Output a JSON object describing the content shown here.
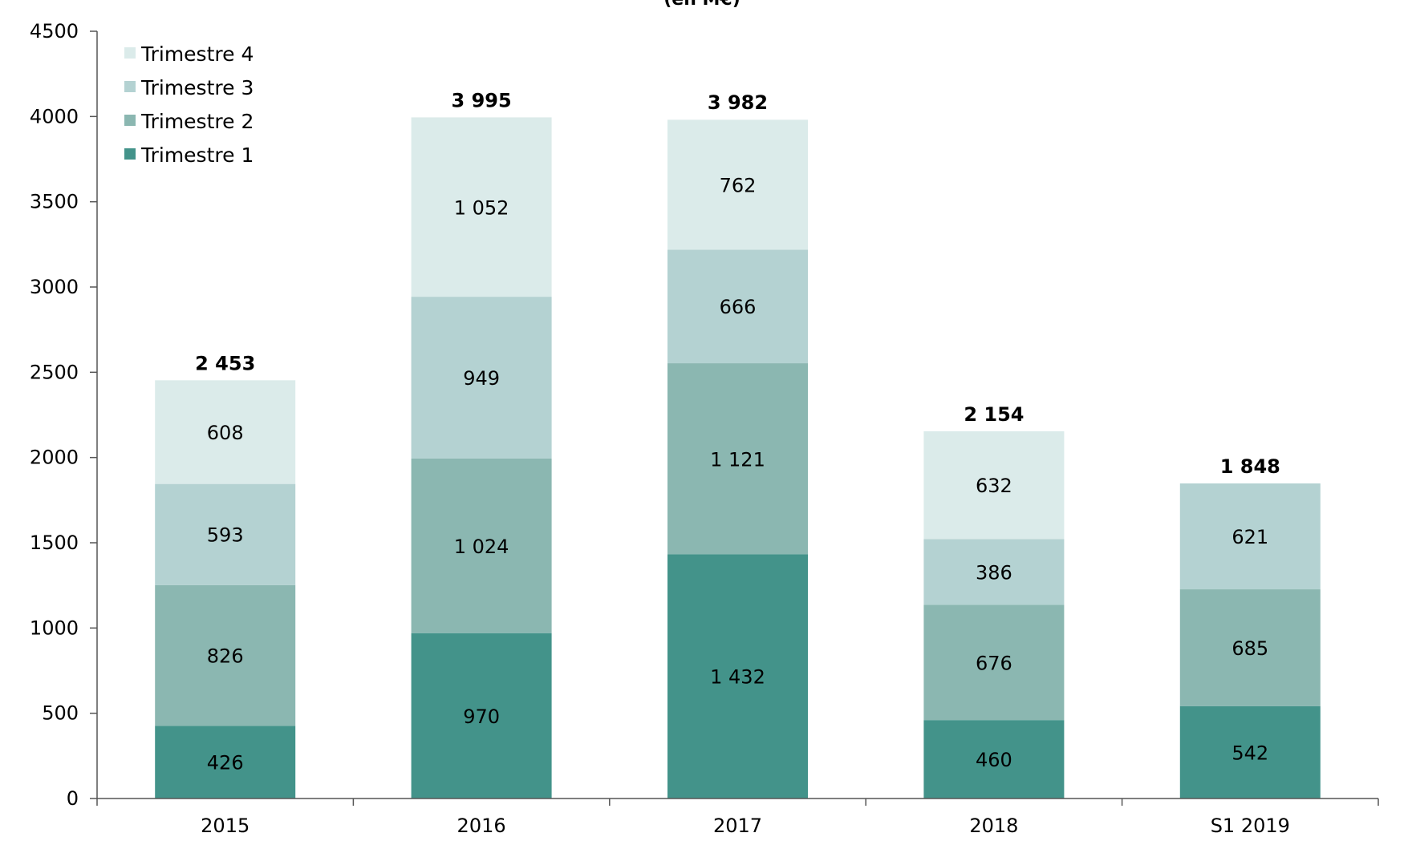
{
  "chart_data": {
    "type": "bar",
    "stacked": true,
    "title": "(en M€)",
    "xlabel": "",
    "ylabel": "",
    "ylim": [
      0,
      4500
    ],
    "yticks": [
      0,
      500,
      1000,
      1500,
      2000,
      2500,
      3000,
      3500,
      4000,
      4500
    ],
    "ytick_labels": [
      "0",
      "500",
      "1000",
      "1500",
      "2000",
      "2500",
      "3000",
      "3500",
      "4000",
      "4500"
    ],
    "categories": [
      "2015",
      "2016",
      "2017",
      "2018",
      "S1 2019"
    ],
    "grid": false,
    "legend_position": "top-left",
    "series": [
      {
        "name": "Trimestre 1",
        "color": "#43938a",
        "values": [
          426,
          970,
          1432,
          460,
          542
        ],
        "labels": [
          "426",
          "970",
          "1 432",
          "460",
          "542"
        ]
      },
      {
        "name": "Trimestre 2",
        "color": "#8bb7b1",
        "values": [
          826,
          1024,
          1121,
          676,
          685
        ],
        "labels": [
          "826",
          "1 024",
          "1 121",
          "676",
          "685"
        ]
      },
      {
        "name": "Trimestre 3",
        "color": "#b4d2d2",
        "values": [
          593,
          949,
          666,
          386,
          621
        ],
        "labels": [
          "593",
          "949",
          "666",
          "386",
          "621"
        ]
      },
      {
        "name": "Trimestre 4",
        "color": "#dbebea",
        "values": [
          608,
          1052,
          762,
          632,
          null
        ],
        "labels": [
          "608",
          "1 052",
          "762",
          "632",
          ""
        ]
      }
    ],
    "totals": [
      2453,
      3995,
      3982,
      2154,
      1848
    ],
    "total_labels": [
      "2 453",
      "3 995",
      "3 982",
      "2 154",
      "1 848"
    ]
  }
}
